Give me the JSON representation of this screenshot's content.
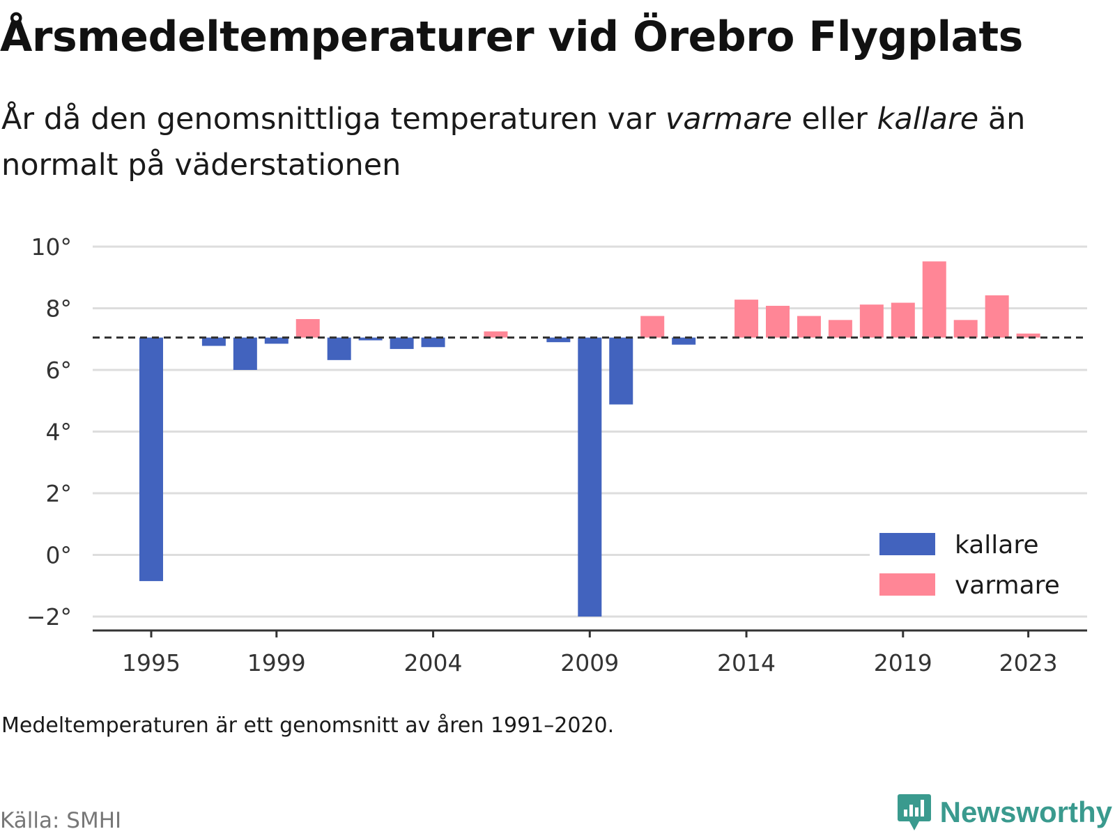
{
  "title": "Årsmedeltemperaturer vid Örebro Flygplats",
  "subtitle": {
    "part1": "År då den genomsnittliga temperaturen var ",
    "warm_word": "varmare",
    "part2": " eller ",
    "cold_word": "kallare",
    "part3": " än normalt på väderstationen"
  },
  "footnote": "Medeltemperaturen är ett genomsnitt av åren 1991–2020.",
  "source": "Källa: SMHI",
  "brand": {
    "name": "Newsworthy",
    "icon": "newsworthy-logo-icon"
  },
  "colors": {
    "kallare": "#4263be",
    "varmare": "#ff8696",
    "reference_line": "#333333",
    "grid": "#dddddd"
  },
  "chart_data": {
    "type": "bar",
    "x": [
      1995,
      1996,
      1997,
      1998,
      1999,
      2000,
      2001,
      2002,
      2003,
      2004,
      2005,
      2006,
      2007,
      2008,
      2009,
      2010,
      2011,
      2012,
      2013,
      2014,
      2015,
      2016,
      2017,
      2018,
      2019,
      2020,
      2021,
      2022,
      2023
    ],
    "values": [
      -0.85,
      6.98,
      6.78,
      6.0,
      6.85,
      7.65,
      6.32,
      6.96,
      6.68,
      6.74,
      7.05,
      7.25,
      7.05,
      6.9,
      -2.0,
      4.88,
      7.75,
      6.82,
      7.05,
      8.28,
      8.08,
      7.75,
      7.62,
      8.12,
      8.18,
      9.52,
      7.62,
      8.42,
      7.18
    ],
    "baseline": 7.05,
    "series": [
      {
        "name": "kallare",
        "color": "#4263be"
      },
      {
        "name": "varmare",
        "color": "#ff8696"
      }
    ],
    "yticks": [
      10,
      8,
      6,
      4,
      2,
      0,
      -2
    ],
    "ytick_labels": [
      "10°",
      "8°",
      "6°",
      "4°",
      "2°",
      "0°",
      "−2°"
    ],
    "xticks": [
      1995,
      1999,
      2004,
      2009,
      2014,
      2019,
      2023
    ],
    "xtick_labels": [
      "1995",
      "1999",
      "2004",
      "2009",
      "2014",
      "2019",
      "2023"
    ],
    "ylim": [
      -2.4,
      11
    ],
    "grid": true,
    "legend_position": "bottom-right"
  }
}
